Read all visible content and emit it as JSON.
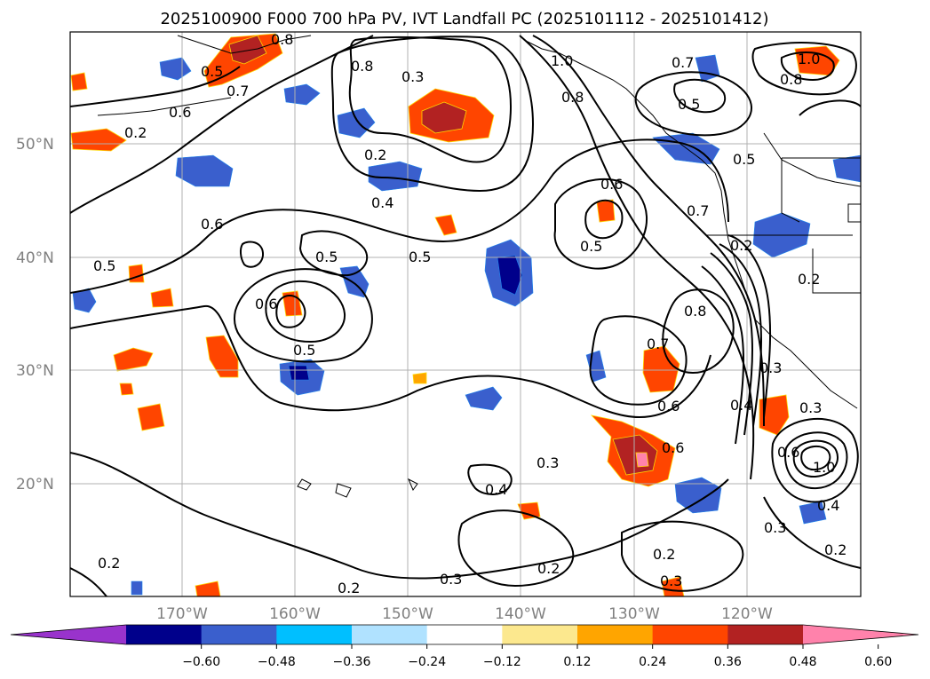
{
  "title": "2025100900 F000 700 hPa PV, IVT Landfall PC (2025101112 - 2025101412)",
  "map": {
    "latitude_labels": [
      "50°N",
      "40°N",
      "30°N",
      "20°N"
    ],
    "longitude_labels": [
      "170°W",
      "160°W",
      "150°W",
      "140°W",
      "130°W",
      "120°W"
    ],
    "grid": true,
    "coastline_color": "#000000",
    "contour_color": "#000000",
    "contour_labels": [
      "0.5",
      "0.8",
      "0.3",
      "0.7",
      "1.0",
      "0.8",
      "0.6",
      "0.7",
      "0.5",
      "0.8",
      "1.0",
      "0.8",
      "0.2",
      "0.5",
      "0.4",
      "0.6",
      "0.6",
      "0.5",
      "0.5",
      "0.5",
      "0.5",
      "0.6",
      "0.5",
      "0.7",
      "0.8",
      "0.2",
      "0.7",
      "0.6",
      "0.4",
      "0.3",
      "0.3",
      "0.6",
      "0.6",
      "0.3",
      "0.4",
      "0.2",
      "0.2",
      "0.3",
      "0.2",
      "0.3",
      "0.2",
      "0.3",
      "0.2",
      "1.0",
      "0.4",
      "0.2",
      "0.2"
    ]
  },
  "colorbar": {
    "tick_labels": [
      "−0.60",
      "−0.48",
      "−0.36",
      "−0.24",
      "−0.12",
      "0.12",
      "0.24",
      "0.36",
      "0.48",
      "0.60"
    ],
    "colors": [
      "#9933cc",
      "#00008b",
      "#3a5fcd",
      "#00bfff",
      "#b0e2ff",
      "#ffffff",
      "#fce88e",
      "#ffa500",
      "#ff4500",
      "#b22222",
      "#ff82ab"
    ],
    "extend": "both"
  }
}
